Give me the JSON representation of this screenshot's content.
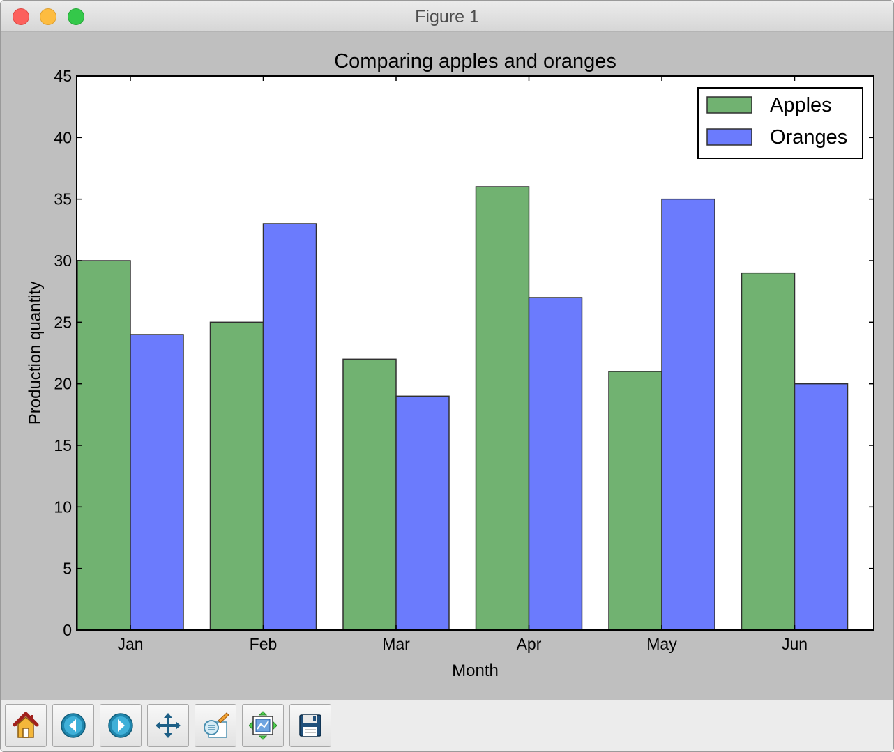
{
  "window": {
    "title": "Figure 1"
  },
  "toolbar": {
    "buttons": [
      {
        "name": "home-button",
        "icon": "home-icon"
      },
      {
        "name": "back-button",
        "icon": "back-arrow-icon"
      },
      {
        "name": "forward-button",
        "icon": "forward-arrow-icon"
      },
      {
        "name": "pan-button",
        "icon": "pan-move-icon"
      },
      {
        "name": "zoom-rect-button",
        "icon": "zoom-to-rectangle-icon"
      },
      {
        "name": "subplots-button",
        "icon": "configure-subplots-icon"
      },
      {
        "name": "save-button",
        "icon": "save-disk-icon"
      }
    ]
  },
  "chart_data": {
    "type": "bar",
    "title": "Comparing apples and oranges",
    "xlabel": "Month",
    "ylabel": "Production quantity",
    "categories": [
      "Jan",
      "Feb",
      "Mar",
      "Apr",
      "May",
      "Jun"
    ],
    "series": [
      {
        "name": "Apples",
        "color": "#71b271",
        "values": [
          30,
          25,
          22,
          36,
          21,
          29
        ]
      },
      {
        "name": "Oranges",
        "color": "#6b7bfd",
        "values": [
          24,
          33,
          19,
          27,
          35,
          20
        ]
      }
    ],
    "ylim": [
      0,
      45
    ],
    "yticks": [
      0,
      5,
      10,
      15,
      20,
      25,
      30,
      35,
      40,
      45
    ],
    "ytick_labels": [
      "0",
      "5",
      "10",
      "15",
      "20",
      "25",
      "30",
      "35",
      "40",
      "45"
    ],
    "grid": false,
    "legend_position": "top-right"
  }
}
